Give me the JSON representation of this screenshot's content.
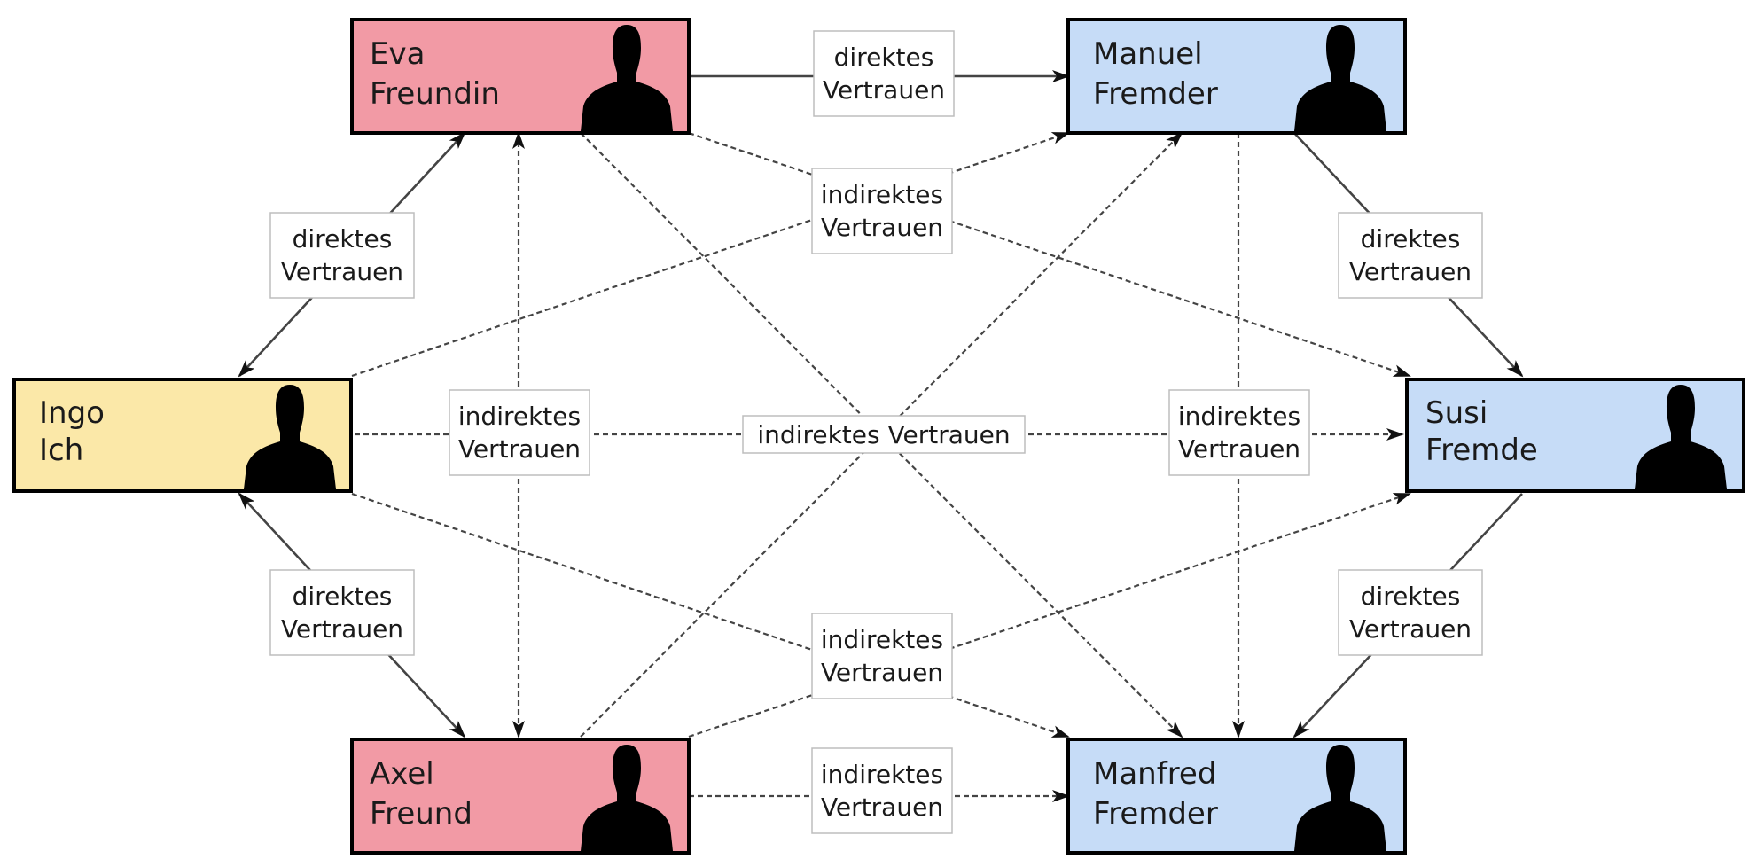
{
  "nodes": {
    "eva": {
      "first": "Eva",
      "role": "Freundin",
      "color": "#f29aa5"
    },
    "manuel": {
      "first": "Manuel",
      "role": "Fremder",
      "color": "#c6dcf7"
    },
    "ingo": {
      "first": "Ingo",
      "role": "Ich",
      "color": "#fbe8a8"
    },
    "susi": {
      "first": "Susi",
      "role": "Fremde",
      "color": "#c6dcf7"
    },
    "axel": {
      "first": "Axel",
      "role": "Freund",
      "color": "#f29aa5"
    },
    "manfred": {
      "first": "Manfred",
      "role": "Fremder",
      "color": "#c6dcf7"
    }
  },
  "labels": {
    "direct_l1": "direktes",
    "direct_l2": "Vertrauen",
    "indirect_l1": "indirektes",
    "indirect_l2": "Vertrauen",
    "indirect_one_line": "indirektes Vertrauen"
  },
  "icons": {
    "person": "person-silhouette-icon"
  }
}
